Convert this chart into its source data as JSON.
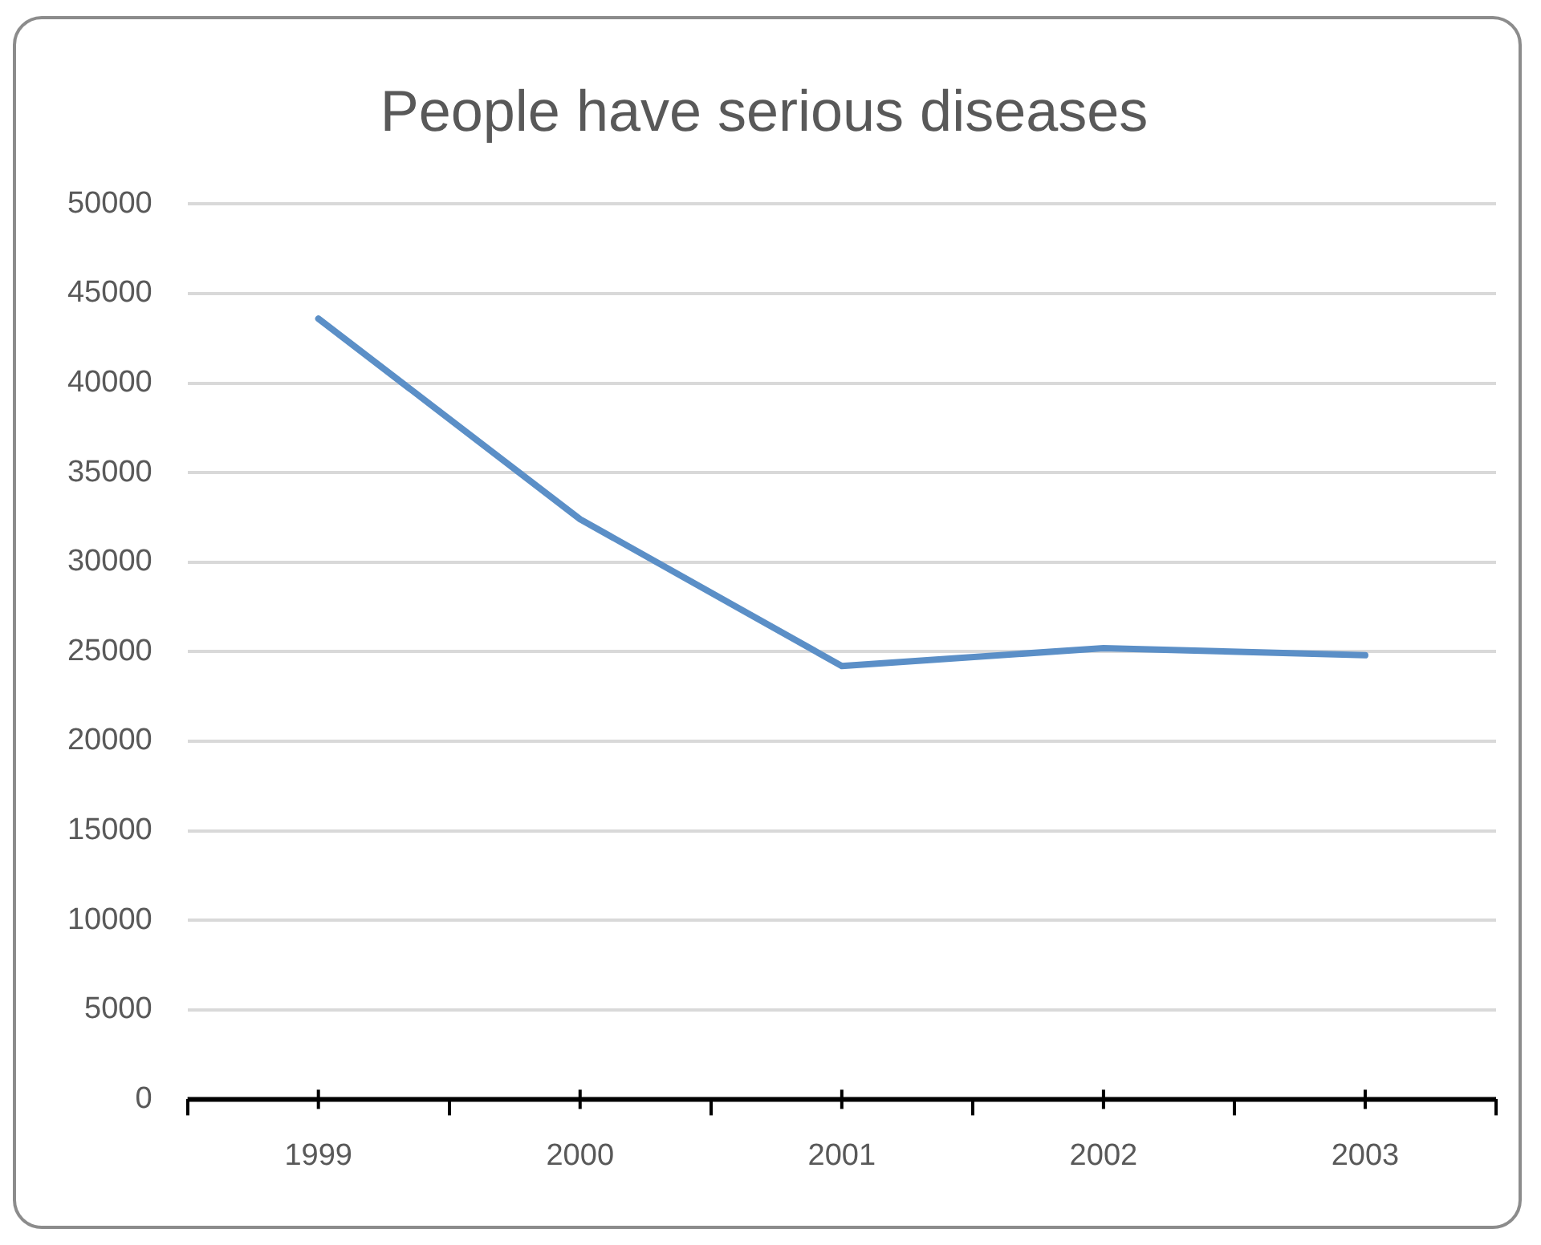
{
  "chart_data": {
    "type": "line",
    "title": "People have serious diseases",
    "categories": [
      "1999",
      "2000",
      "2001",
      "2002",
      "2003"
    ],
    "series": [
      {
        "color": "#5b8fc7",
        "values": [
          43600,
          32400,
          24200,
          25200,
          24800
        ]
      }
    ],
    "ylim": [
      0,
      50000
    ],
    "yticks": [
      0,
      5000,
      10000,
      15000,
      20000,
      25000,
      30000,
      35000,
      40000,
      45000,
      50000
    ],
    "grid": "y",
    "legend": false,
    "marker": "none",
    "line_style": "solid"
  }
}
